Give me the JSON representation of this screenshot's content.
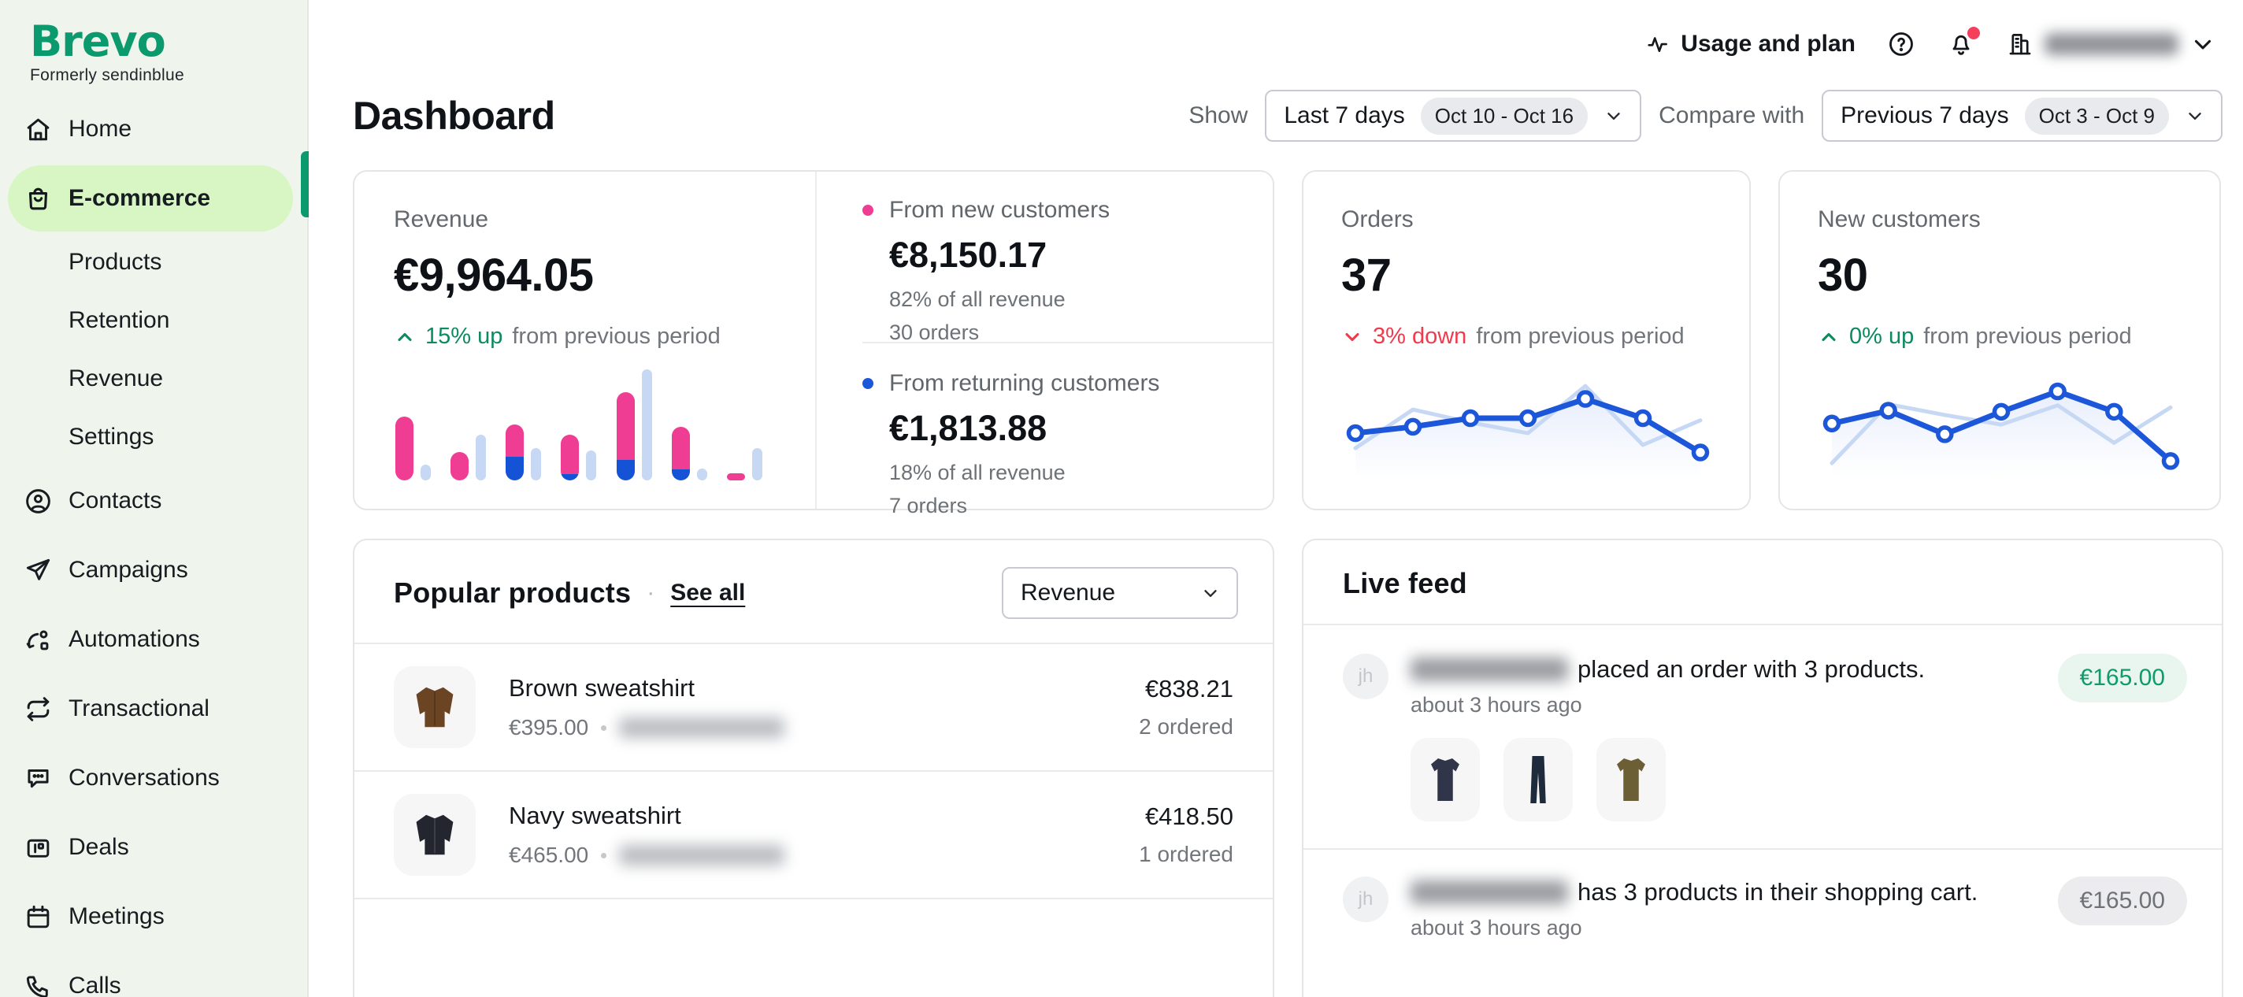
{
  "brand": {
    "logo": "Brevo",
    "tagline": "Formerly sendinblue"
  },
  "topbar": {
    "usage_and_plan": "Usage and plan",
    "account_name_redacted": true
  },
  "sidebar": {
    "items": [
      {
        "label": "Home",
        "icon": "home"
      },
      {
        "label": "E-commerce",
        "icon": "shopping-bag",
        "selected": true
      },
      {
        "label": "Products",
        "sub": true
      },
      {
        "label": "Retention",
        "sub": true
      },
      {
        "label": "Revenue",
        "sub": true
      },
      {
        "label": "Settings",
        "sub": true
      },
      {
        "label": "Contacts",
        "icon": "contacts"
      },
      {
        "label": "Campaigns",
        "icon": "paper-plane"
      },
      {
        "label": "Automations",
        "icon": "automation"
      },
      {
        "label": "Transactional",
        "icon": "repeat"
      },
      {
        "label": "Conversations",
        "icon": "chat"
      },
      {
        "label": "Deals",
        "icon": "wallet"
      },
      {
        "label": "Meetings",
        "icon": "calendar"
      },
      {
        "label": "Calls",
        "icon": "phone"
      }
    ]
  },
  "header": {
    "title": "Dashboard",
    "show_label": "Show",
    "show_value": "Last 7 days",
    "show_range": "Oct 10 - Oct 16",
    "compare_label": "Compare with",
    "compare_value": "Previous 7 days",
    "compare_range": "Oct 3 - Oct 9"
  },
  "kpis": {
    "revenue": {
      "label": "Revenue",
      "value": "€9,964.05",
      "delta": "15% up",
      "delta_direction": "up",
      "delta_suffix": "from previous period",
      "new_customers": {
        "label": "From new customers",
        "value": "€8,150.17",
        "share": "82% of all revenue",
        "orders": "30 orders",
        "bullet_color": "#ee3d93"
      },
      "returning_customers": {
        "label": "From returning customers",
        "value": "€1,813.88",
        "share": "18% of all revenue",
        "orders": "7 orders",
        "bullet_color": "#1c56d9"
      }
    },
    "orders": {
      "label": "Orders",
      "value": "37",
      "delta": "3% down",
      "delta_direction": "down",
      "delta_suffix": "from previous period"
    },
    "new_customers": {
      "label": "New customers",
      "value": "30",
      "delta": "0% up",
      "delta_direction": "up",
      "delta_suffix": "from previous period"
    }
  },
  "popular_products": {
    "title": "Popular products",
    "separator": "·",
    "see_all": "See all",
    "sort_value": "Revenue",
    "rows": [
      {
        "name": "Brown sweatshirt",
        "price": "€395.00",
        "sku_redacted": true,
        "amount": "€838.21",
        "ordered": "2 ordered",
        "garment": {
          "type": "jacket",
          "color": "#6b4423"
        }
      },
      {
        "name": "Navy sweatshirt",
        "price": "€465.00",
        "sku_redacted": true,
        "amount": "€418.50",
        "ordered": "1 ordered",
        "garment": {
          "type": "jacket",
          "color": "#23262f"
        }
      }
    ]
  },
  "live_feed": {
    "title": "Live feed",
    "items": [
      {
        "initials": "jh",
        "name_redacted": true,
        "text": "placed an order with 3 products.",
        "time": "about 3 hours ago",
        "amount": "€165.00",
        "amount_style": "success",
        "thumbnails": [
          {
            "type": "tshirt",
            "color": "#30354a"
          },
          {
            "type": "pants",
            "color": "#1e2b3c"
          },
          {
            "type": "tshirt",
            "color": "#6c5f35"
          }
        ]
      },
      {
        "initials": "jh",
        "name_redacted": true,
        "text": "has 3 products in their shopping cart.",
        "time": "about 3 hours ago",
        "amount": "€165.00",
        "amount_style": "neutral"
      }
    ]
  },
  "chart_data": [
    {
      "id": "revenue_by_day",
      "type": "bar",
      "title": "Revenue by day, current vs previous 7 days",
      "x": [
        "d1",
        "d2",
        "d3",
        "d4",
        "d5",
        "d6",
        "d7"
      ],
      "series": [
        {
          "name": "current",
          "values": [
            53,
            24,
            47,
            38,
            74,
            45,
            4
          ]
        },
        {
          "name": "current_returning_portion",
          "values": [
            0,
            0,
            20,
            5,
            17,
            9,
            0
          ]
        },
        {
          "name": "previous",
          "values": [
            13,
            38,
            27,
            25,
            93,
            10,
            27
          ]
        }
      ],
      "unit": "percent_of_chart_height",
      "colors": {
        "current_new": "#ee3d93",
        "current_returning": "#1553d6",
        "previous": "#c6d8f4"
      },
      "axes": "none",
      "legend": "none"
    },
    {
      "id": "orders_trend",
      "type": "line",
      "title": "Orders, current vs previous 7 days",
      "x": [
        "d1",
        "d2",
        "d3",
        "d4",
        "d5",
        "d6",
        "d7"
      ],
      "series": [
        {
          "name": "current",
          "values": [
            36,
            42,
            50,
            50,
            68,
            50,
            18
          ]
        },
        {
          "name": "previous",
          "values": [
            22,
            58,
            46,
            36,
            80,
            25,
            48
          ]
        }
      ],
      "unit": "percent_of_chart_height",
      "colors": {
        "current": "#1c56d9",
        "previous": "#c6d8f4"
      },
      "axes": "none",
      "legend": "none",
      "markers": true
    },
    {
      "id": "new_customers_trend",
      "type": "line",
      "title": "New customers, current vs previous 7 days",
      "x": [
        "d1",
        "d2",
        "d3",
        "d4",
        "d5",
        "d6",
        "d7"
      ],
      "series": [
        {
          "name": "current",
          "values": [
            45,
            57,
            35,
            56,
            75,
            56,
            10
          ]
        },
        {
          "name": "previous",
          "values": [
            8,
            63,
            53,
            44,
            62,
            27,
            60
          ]
        }
      ],
      "unit": "percent_of_chart_height",
      "colors": {
        "current": "#1c56d9",
        "previous": "#c6d8f4"
      },
      "axes": "none",
      "legend": "none",
      "markers": true
    }
  ]
}
